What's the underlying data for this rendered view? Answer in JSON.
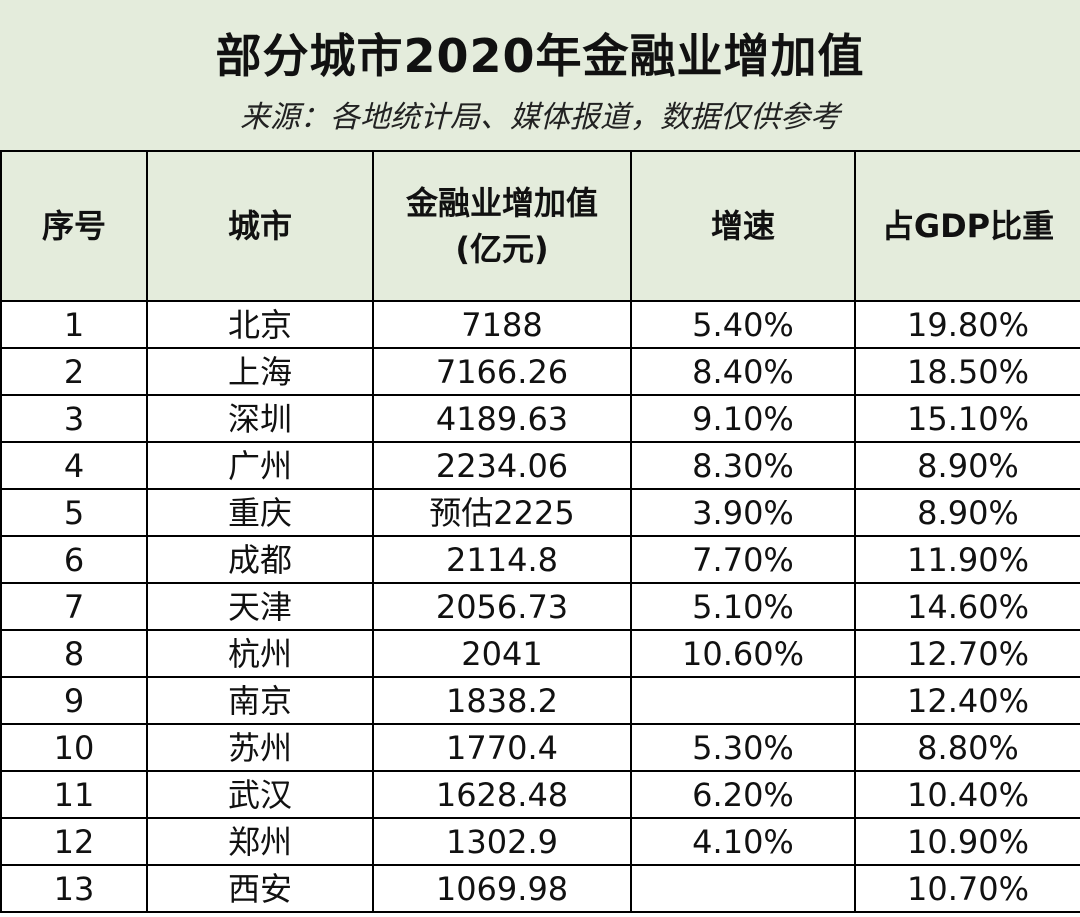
{
  "title": "部分城市2020年金融业增加值",
  "subtitle": "来源：各地统计局、媒体报道，数据仅供参考",
  "headers": {
    "index": "序号",
    "city": "城市",
    "value_line1": "金融业增加值",
    "value_line2": "(亿元)",
    "growth": "增速",
    "gdp_share": "占GDP比重"
  },
  "rows": [
    {
      "index": "1",
      "city": "北京",
      "value": "7188",
      "growth": "5.40%",
      "share": "19.80%"
    },
    {
      "index": "2",
      "city": "上海",
      "value": "7166.26",
      "growth": "8.40%",
      "share": "18.50%"
    },
    {
      "index": "3",
      "city": "深圳",
      "value": "4189.63",
      "growth": "9.10%",
      "share": "15.10%"
    },
    {
      "index": "4",
      "city": "广州",
      "value": "2234.06",
      "growth": "8.30%",
      "share": "8.90%"
    },
    {
      "index": "5",
      "city": "重庆",
      "value": "预估2225",
      "growth": "3.90%",
      "share": "8.90%"
    },
    {
      "index": "6",
      "city": "成都",
      "value": "2114.8",
      "growth": "7.70%",
      "share": "11.90%"
    },
    {
      "index": "7",
      "city": "天津",
      "value": "2056.73",
      "growth": "5.10%",
      "share": "14.60%"
    },
    {
      "index": "8",
      "city": "杭州",
      "value": "2041",
      "growth": "10.60%",
      "share": "12.70%"
    },
    {
      "index": "9",
      "city": "南京",
      "value": "1838.2",
      "growth": "",
      "share": "12.40%"
    },
    {
      "index": "10",
      "city": "苏州",
      "value": "1770.4",
      "growth": "5.30%",
      "share": "8.80%"
    },
    {
      "index": "11",
      "city": "武汉",
      "value": "1628.48",
      "growth": "6.20%",
      "share": "10.40%"
    },
    {
      "index": "12",
      "city": "郑州",
      "value": "1302.9",
      "growth": "4.10%",
      "share": "10.90%"
    },
    {
      "index": "13",
      "city": "西安",
      "value": "1069.98",
      "growth": "",
      "share": "10.70%"
    }
  ],
  "colors": {
    "header_bg": "#e4ecdc",
    "border": "#000000",
    "text": "#111111"
  }
}
